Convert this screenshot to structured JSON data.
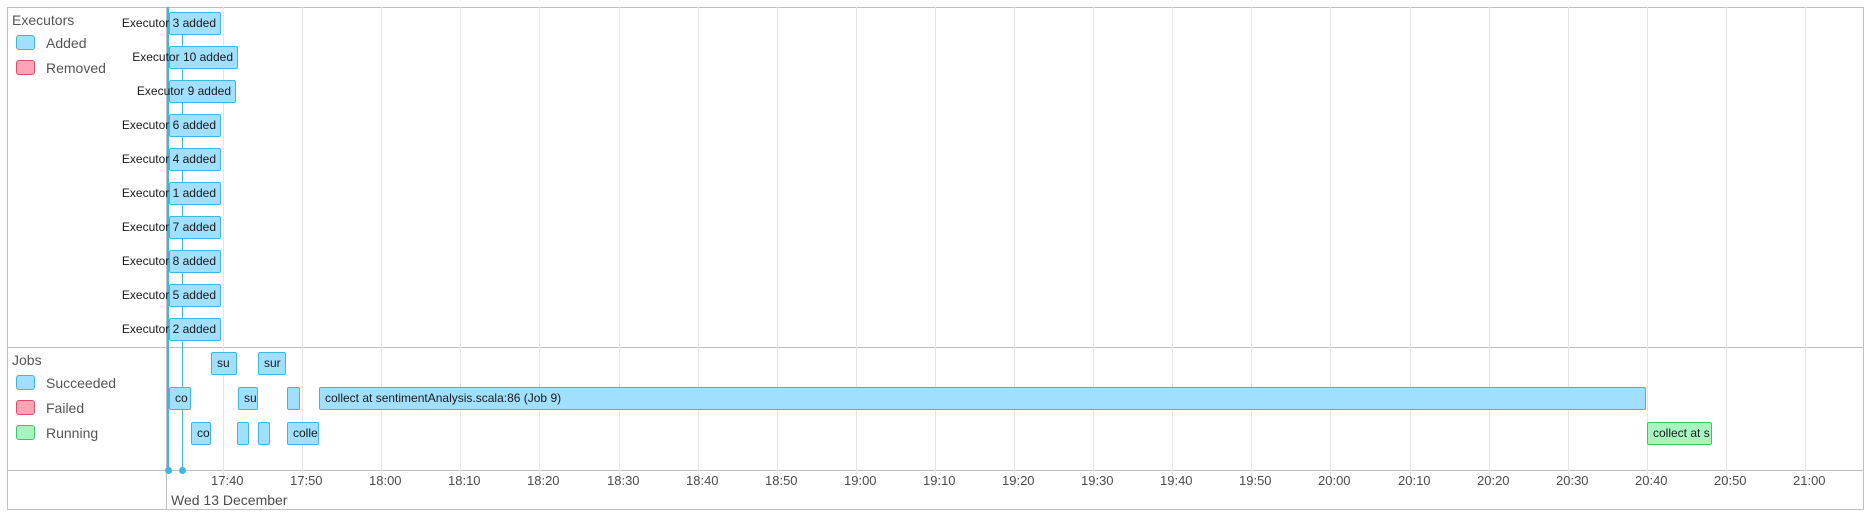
{
  "executors": {
    "title": "Executors",
    "legend": [
      {
        "label": "Added",
        "fill": "#a0dffd",
        "border": "#3eb5e8"
      },
      {
        "label": "Removed",
        "fill": "#ffa4b5",
        "border": "#e8486a"
      }
    ],
    "events": [
      {
        "label": "Executor 3 added"
      },
      {
        "label": "Executor 10 added"
      },
      {
        "label": "Executor 9 added"
      },
      {
        "label": "Executor 6 added"
      },
      {
        "label": "Executor 4 added"
      },
      {
        "label": "Executor 1 added"
      },
      {
        "label": "Executor 7 added"
      },
      {
        "label": "Executor 8 added"
      },
      {
        "label": "Executor 5 added"
      },
      {
        "label": "Executor 2 added"
      }
    ]
  },
  "jobs": {
    "title": "Jobs",
    "legend": [
      {
        "label": "Succeeded",
        "fill": "#a0dffd",
        "border": "#3eb5e8"
      },
      {
        "label": "Failed",
        "fill": "#ffa4b5",
        "border": "#e8486a"
      },
      {
        "label": "Running",
        "fill": "#a8f4c0",
        "border": "#39c667"
      }
    ],
    "items": [
      {
        "label": "su",
        "status": "succeeded"
      },
      {
        "label": "sur",
        "status": "succeeded"
      },
      {
        "label": "co",
        "status": "succeeded"
      },
      {
        "label": "su",
        "status": "succeeded"
      },
      {
        "label": "",
        "status": "succeeded"
      },
      {
        "label": "collect at sentimentAnalysis.scala:86 (Job 9)",
        "status": "succeeded"
      },
      {
        "label": "co",
        "status": "succeeded"
      },
      {
        "label": "",
        "status": "succeeded"
      },
      {
        "label": "",
        "status": "succeeded"
      },
      {
        "label": "colle",
        "status": "succeeded"
      },
      {
        "label": "collect at s",
        "status": "running"
      }
    ]
  },
  "axis": {
    "ticks": [
      "17:40",
      "17:50",
      "18:00",
      "18:10",
      "18:20",
      "18:30",
      "18:40",
      "18:50",
      "19:00",
      "19:10",
      "19:20",
      "19:30",
      "19:40",
      "19:50",
      "20:00",
      "20:10",
      "20:20",
      "20:30",
      "20:40",
      "20:50",
      "21:00"
    ],
    "date": "Wed 13 December"
  }
}
